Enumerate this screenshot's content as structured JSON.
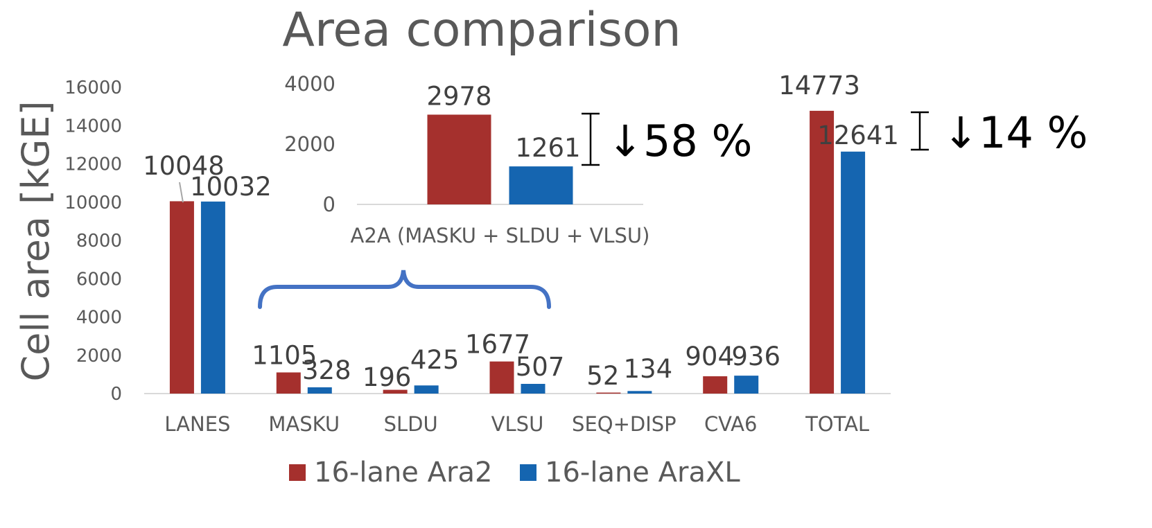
{
  "colors": {
    "ara2": "#A5302D",
    "araxl": "#1565B0",
    "axis": "#D9D9D9",
    "brace": "#4472C4",
    "text": "#595959"
  },
  "chart_data": [
    {
      "type": "bar",
      "title": "Area comparison",
      "ylabel": "Cell area [kGE]",
      "xlabel": "",
      "ylim": [
        0,
        16000
      ],
      "yticks": [
        "0",
        "2000",
        "4000",
        "6000",
        "8000",
        "10000",
        "12000",
        "14000",
        "16000"
      ],
      "categories": [
        "LANES",
        "MASKU",
        "SLDU",
        "VLSU",
        "SEQ+DISP",
        "CVA6",
        "TOTAL"
      ],
      "series": [
        {
          "name": "16-lane Ara2",
          "values": [
            10048,
            1105,
            196,
            1677,
            52,
            904,
            14773
          ]
        },
        {
          "name": "16-lane AraXL",
          "values": [
            10032,
            328,
            425,
            507,
            134,
            936,
            12641
          ]
        }
      ],
      "legend": "bottom",
      "annotation": "↓14 %"
    },
    {
      "type": "bar",
      "ylim": [
        0,
        4000
      ],
      "yticks": [
        "0",
        "2000",
        "4000"
      ],
      "categories": [
        "A2A (MASKU + SLDU + VLSU)"
      ],
      "series": [
        {
          "name": "16-lane Ara2",
          "values": [
            2978
          ]
        },
        {
          "name": "16-lane AraXL",
          "values": [
            1261
          ]
        }
      ],
      "annotation": "↓58 %"
    }
  ]
}
